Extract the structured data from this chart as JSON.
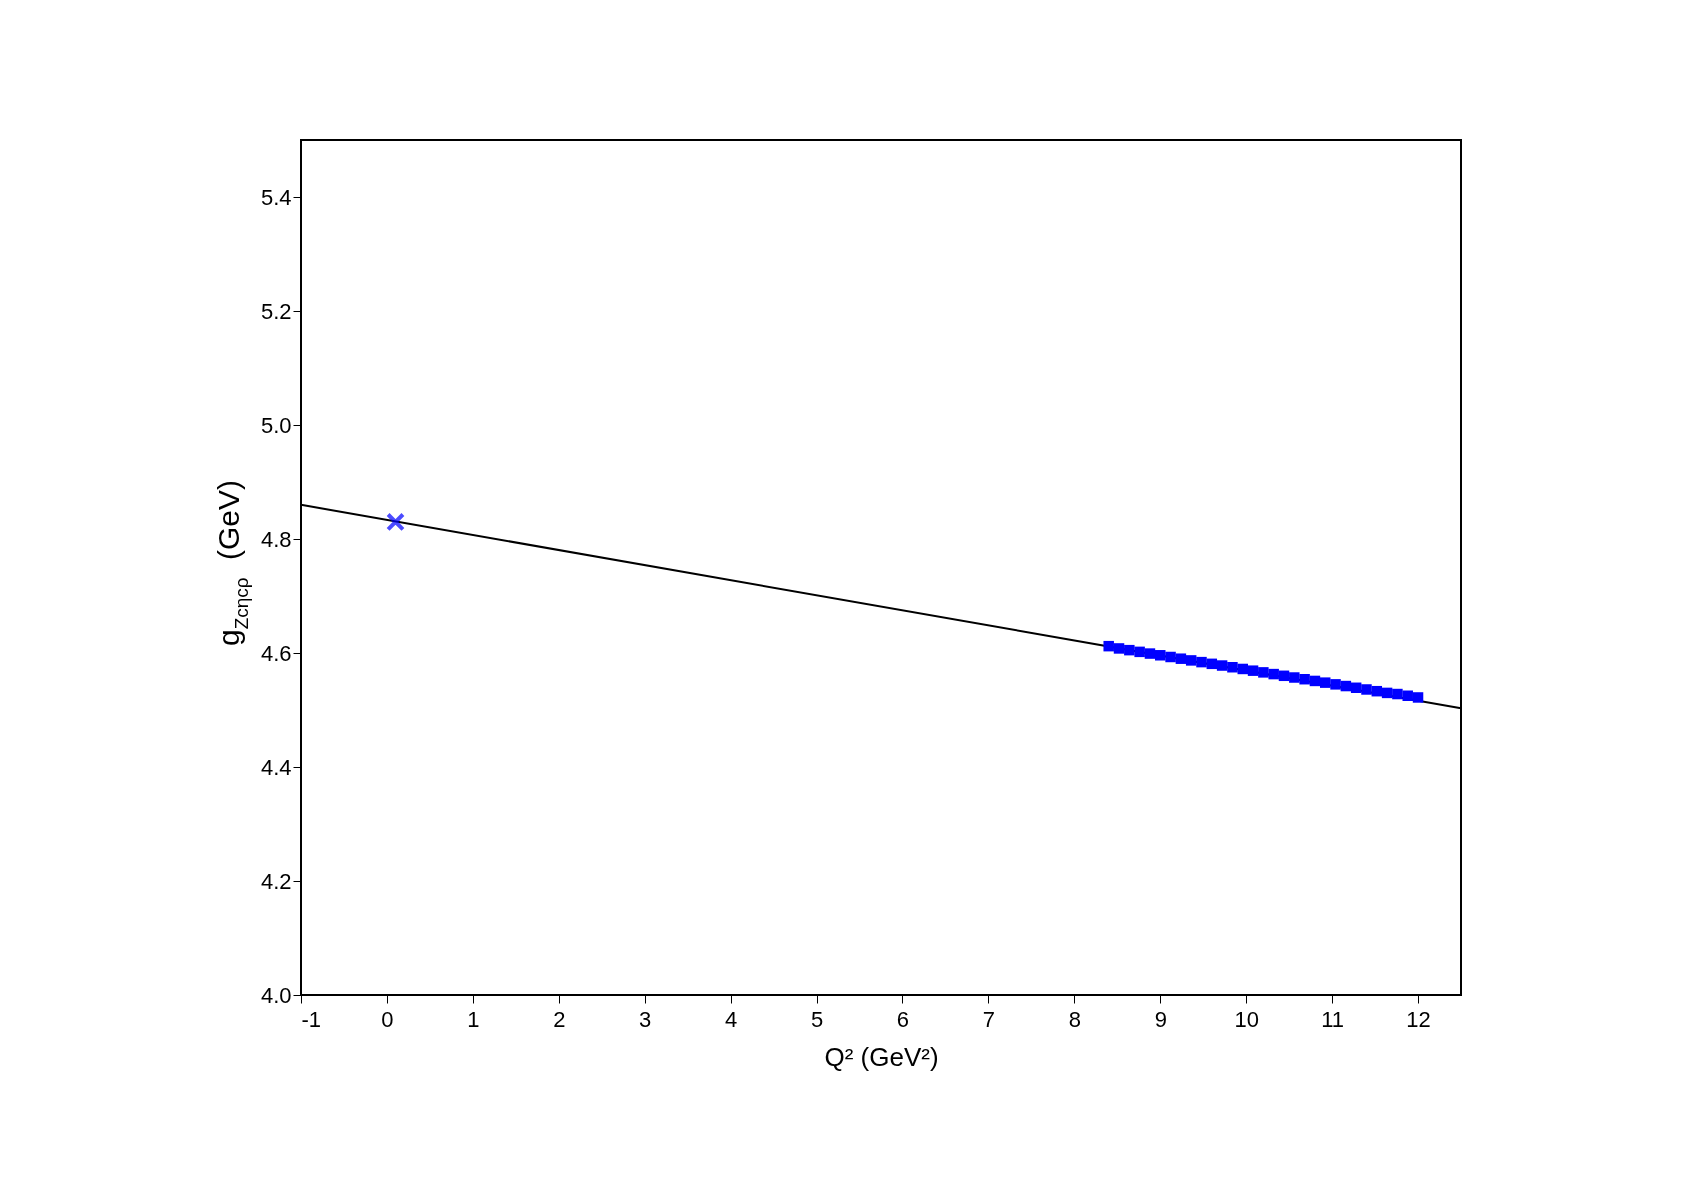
{
  "chart_data": {
    "type": "scatter",
    "xlabel": "Q² (GeV²)",
    "ylabel": "g$_{Zcηcρ}$ (GeV)",
    "xlim": [
      -1,
      12.5
    ],
    "ylim": [
      4.0,
      5.5
    ],
    "xticks": [
      -1,
      0,
      1,
      2,
      3,
      4,
      5,
      6,
      7,
      8,
      9,
      10,
      11,
      12
    ],
    "yticks": [
      {
        "value": 4.0,
        "label": "4.0"
      },
      {
        "value": 4.2,
        "label": "4.2"
      },
      {
        "value": 4.4,
        "label": "4.4"
      },
      {
        "value": 4.6,
        "label": "4.6"
      },
      {
        "value": 4.8,
        "label": "4.8"
      },
      {
        "value": 5.0,
        "label": "5.0"
      },
      {
        "value": 5.2,
        "label": "5.2"
      },
      {
        "value": 5.4,
        "label": "5.4"
      }
    ],
    "grid": false,
    "legend": false,
    "series": [
      {
        "type": "line",
        "color": "#000000",
        "line_style": "solid",
        "marker": "none",
        "x": [
          -1,
          12.5
        ],
        "values": [
          4.86,
          4.503
        ]
      },
      {
        "color": "#0000ff",
        "marker": "square",
        "x": [
          8.4,
          8.52,
          8.64,
          8.76,
          8.88,
          9.0,
          9.12,
          9.24,
          9.36,
          9.48,
          9.6,
          9.72,
          9.84,
          9.96,
          10.08,
          10.2,
          10.32,
          10.44,
          10.56,
          10.68,
          10.8,
          10.92,
          11.04,
          11.16,
          11.28,
          11.4,
          11.52,
          11.64,
          11.76,
          11.88,
          12.0
        ],
        "values": [
          4.612,
          4.608,
          4.605,
          4.602,
          4.599,
          4.596,
          4.593,
          4.59,
          4.587,
          4.584,
          4.581,
          4.578,
          4.575,
          4.572,
          4.569,
          4.566,
          4.563,
          4.56,
          4.557,
          4.554,
          4.551,
          4.548,
          4.545,
          4.542,
          4.539,
          4.536,
          4.533,
          4.53,
          4.528,
          4.525,
          4.522
        ]
      },
      {
        "color": "#0000ff",
        "marker": "cross",
        "x": [
          0.1
        ],
        "values": [
          4.83
        ]
      }
    ]
  }
}
